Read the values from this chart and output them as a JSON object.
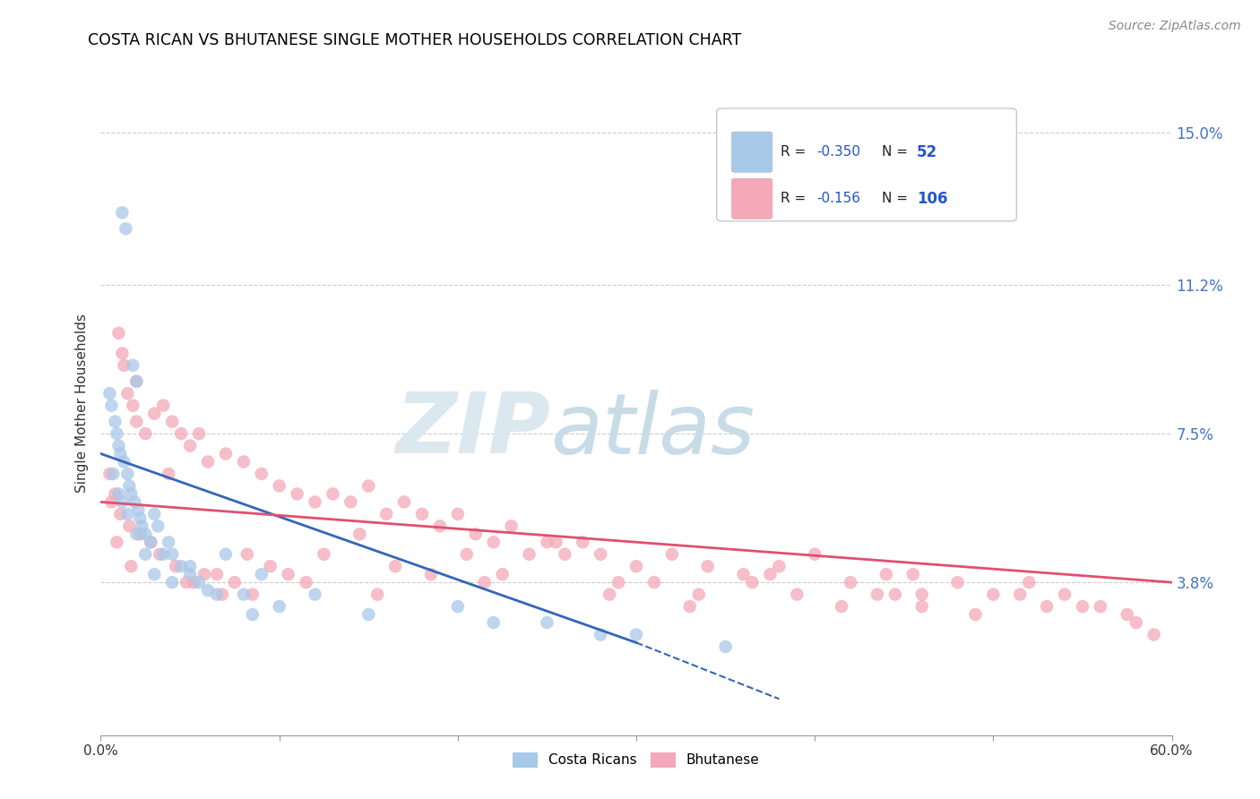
{
  "title": "COSTA RICAN VS BHUTANESE SINGLE MOTHER HOUSEHOLDS CORRELATION CHART",
  "source": "Source: ZipAtlas.com",
  "ylabel": "Single Mother Households",
  "ytick_labels": [
    "3.8%",
    "7.5%",
    "11.2%",
    "15.0%"
  ],
  "ytick_values": [
    3.8,
    7.5,
    11.2,
    15.0
  ],
  "xlim": [
    0.0,
    60.0
  ],
  "ylim": [
    0.0,
    16.5
  ],
  "legend_label1": "Costa Ricans",
  "legend_label2": "Bhutanese",
  "blue_color": "#a8c8e8",
  "pink_color": "#f4a8b8",
  "blue_line_color": "#3366bb",
  "pink_line_color": "#e05070",
  "blue_line_x0": 0.0,
  "blue_line_y0": 7.0,
  "blue_line_x1": 30.0,
  "blue_line_y1": 2.3,
  "blue_dash_x1": 38.0,
  "blue_dash_y1": 0.9,
  "pink_line_x0": 0.0,
  "pink_line_y0": 5.8,
  "pink_line_x1": 60.0,
  "pink_line_y1": 3.8,
  "costa_rican_x": [
    1.2,
    1.4,
    1.8,
    2.0,
    0.5,
    0.6,
    0.8,
    0.9,
    1.0,
    1.1,
    1.3,
    1.5,
    1.6,
    1.7,
    1.9,
    2.1,
    2.2,
    2.3,
    2.5,
    2.8,
    3.0,
    3.2,
    3.5,
    3.8,
    4.0,
    4.5,
    5.0,
    5.5,
    6.0,
    7.0,
    8.0,
    9.0,
    10.0,
    12.0,
    15.0,
    20.0,
    22.0,
    28.0,
    0.7,
    1.0,
    1.2,
    1.5,
    2.0,
    2.5,
    3.0,
    4.0,
    5.0,
    6.5,
    8.5,
    25.0,
    30.0,
    35.0
  ],
  "costa_rican_y": [
    13.0,
    12.6,
    9.2,
    8.8,
    8.5,
    8.2,
    7.8,
    7.5,
    7.2,
    7.0,
    6.8,
    6.5,
    6.2,
    6.0,
    5.8,
    5.6,
    5.4,
    5.2,
    5.0,
    4.8,
    5.5,
    5.2,
    4.5,
    4.8,
    4.5,
    4.2,
    4.0,
    3.8,
    3.6,
    4.5,
    3.5,
    4.0,
    3.2,
    3.5,
    3.0,
    3.2,
    2.8,
    2.5,
    6.5,
    6.0,
    5.8,
    5.5,
    5.0,
    4.5,
    4.0,
    3.8,
    4.2,
    3.5,
    3.0,
    2.8,
    2.5,
    2.2
  ],
  "bhutanese_x": [
    0.5,
    0.8,
    1.0,
    1.2,
    1.5,
    1.8,
    2.0,
    2.5,
    3.0,
    3.5,
    4.0,
    4.5,
    5.0,
    5.5,
    6.0,
    7.0,
    8.0,
    9.0,
    10.0,
    11.0,
    12.0,
    13.0,
    14.0,
    15.0,
    16.0,
    17.0,
    18.0,
    19.0,
    20.0,
    21.0,
    22.0,
    23.0,
    24.0,
    25.0,
    26.0,
    27.0,
    28.0,
    30.0,
    32.0,
    34.0,
    36.0,
    38.0,
    40.0,
    42.0,
    44.0,
    46.0,
    48.0,
    50.0,
    52.0,
    54.0,
    56.0,
    58.0,
    0.6,
    1.1,
    1.6,
    2.2,
    2.8,
    3.3,
    4.2,
    5.2,
    6.5,
    7.5,
    8.5,
    9.5,
    10.5,
    12.5,
    14.5,
    16.5,
    18.5,
    20.5,
    22.5,
    25.5,
    28.5,
    31.0,
    33.5,
    36.5,
    39.0,
    41.5,
    43.5,
    46.0,
    49.0,
    51.5,
    55.0,
    57.5,
    1.3,
    2.0,
    3.8,
    5.8,
    8.2,
    11.5,
    15.5,
    29.0,
    37.5,
    44.5,
    53.0,
    59.0,
    0.9,
    1.7,
    4.8,
    6.8,
    21.5,
    33.0,
    45.5
  ],
  "bhutanese_y": [
    6.5,
    6.0,
    10.0,
    9.5,
    8.5,
    8.2,
    7.8,
    7.5,
    8.0,
    8.2,
    7.8,
    7.5,
    7.2,
    7.5,
    6.8,
    7.0,
    6.8,
    6.5,
    6.2,
    6.0,
    5.8,
    6.0,
    5.8,
    6.2,
    5.5,
    5.8,
    5.5,
    5.2,
    5.5,
    5.0,
    4.8,
    5.2,
    4.5,
    4.8,
    4.5,
    4.8,
    4.5,
    4.2,
    4.5,
    4.2,
    4.0,
    4.2,
    4.5,
    3.8,
    4.0,
    3.5,
    3.8,
    3.5,
    3.8,
    3.5,
    3.2,
    2.8,
    5.8,
    5.5,
    5.2,
    5.0,
    4.8,
    4.5,
    4.2,
    3.8,
    4.0,
    3.8,
    3.5,
    4.2,
    4.0,
    4.5,
    5.0,
    4.2,
    4.0,
    4.5,
    4.0,
    4.8,
    3.5,
    3.8,
    3.5,
    3.8,
    3.5,
    3.2,
    3.5,
    3.2,
    3.0,
    3.5,
    3.2,
    3.0,
    9.2,
    8.8,
    6.5,
    4.0,
    4.5,
    3.8,
    3.5,
    3.8,
    4.0,
    3.5,
    3.2,
    2.5,
    4.8,
    4.2,
    3.8,
    3.5,
    3.8,
    3.2,
    4.0
  ]
}
